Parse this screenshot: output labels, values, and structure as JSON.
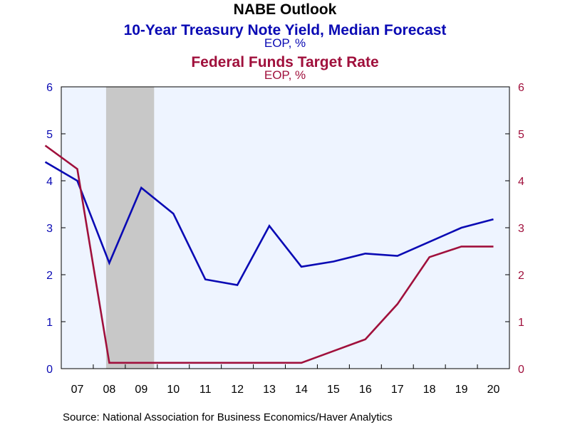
{
  "title": "NABE Outlook",
  "subtitle_1": "10-Year Treasury Note Yield, Median Forecast",
  "unit_1": "EOP, %",
  "subtitle_2": "Federal Funds Target Rate",
  "unit_2": "EOP, %",
  "source": "Source:  National Association for Business Economics/Haver Analytics",
  "colors": {
    "series_1": "#0a0ab4",
    "series_2": "#a0103c",
    "plot_background": "#eef4ff",
    "recession_shading": "#c8c8c8"
  },
  "chart_data": {
    "type": "line",
    "x_ticks": [
      "07",
      "08",
      "09",
      "10",
      "11",
      "12",
      "13",
      "14",
      "15",
      "16",
      "17",
      "18",
      "19",
      "20"
    ],
    "y_ticks": [
      "0",
      "1",
      "2",
      "3",
      "4",
      "5",
      "6"
    ],
    "ylim_left": [
      0,
      6
    ],
    "ylim_right": [
      0,
      6
    ],
    "recession_shading": {
      "from": "2007.9",
      "to": "2009.4"
    },
    "series": [
      {
        "name": "10-Year Treasury Note Yield, Median Forecast",
        "axis": "left",
        "x": [
          "2006",
          "2007",
          "2008",
          "2009",
          "2010",
          "2011",
          "2012",
          "2013",
          "2014",
          "2015",
          "2016",
          "2017",
          "2018",
          "2019",
          "2020"
        ],
        "values": [
          4.4,
          4.0,
          2.25,
          3.85,
          3.3,
          1.9,
          1.78,
          3.04,
          2.17,
          2.28,
          2.45,
          2.4,
          2.7,
          3.0,
          3.18
        ]
      },
      {
        "name": "Federal Funds Target Rate",
        "axis": "right",
        "x": [
          "2006",
          "2007",
          "2008",
          "2009",
          "2010",
          "2011",
          "2012",
          "2013",
          "2014",
          "2015",
          "2016",
          "2017",
          "2018",
          "2019",
          "2020"
        ],
        "values": [
          4.75,
          4.25,
          0.125,
          0.125,
          0.125,
          0.125,
          0.125,
          0.125,
          0.125,
          0.375,
          0.625,
          1.375,
          2.375,
          2.6,
          2.6
        ]
      }
    ],
    "grid": false,
    "legend": "none"
  }
}
